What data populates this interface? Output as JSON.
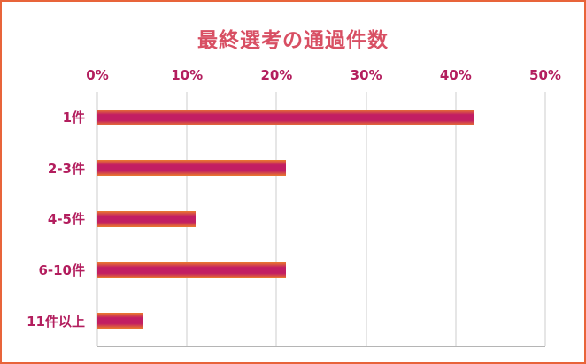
{
  "page": {
    "background": "#ffffff",
    "border_color": "#e8643a"
  },
  "chart_data": {
    "type": "bar",
    "orientation": "horizontal",
    "title": "最終選考の通過件数",
    "categories": [
      "1件",
      "2-3件",
      "4-5件",
      "6-10件",
      "11件以上"
    ],
    "values": [
      42,
      21,
      11,
      21,
      5
    ],
    "unit": "%",
    "xlabel": "",
    "ylabel": "",
    "xlim": [
      0,
      50
    ],
    "x_ticks": [
      "0%",
      "10%",
      "20%",
      "30%",
      "40%",
      "50%"
    ],
    "grid": true,
    "legend": false,
    "colors": {
      "title": "#d84f63",
      "axis_labels": "#b31e5e",
      "bar_gradient_edge": "#ea7a2e",
      "bar_gradient_mid": "#c21e63",
      "gridline": "#cccccc",
      "baseline": "#b5b5b5"
    }
  }
}
